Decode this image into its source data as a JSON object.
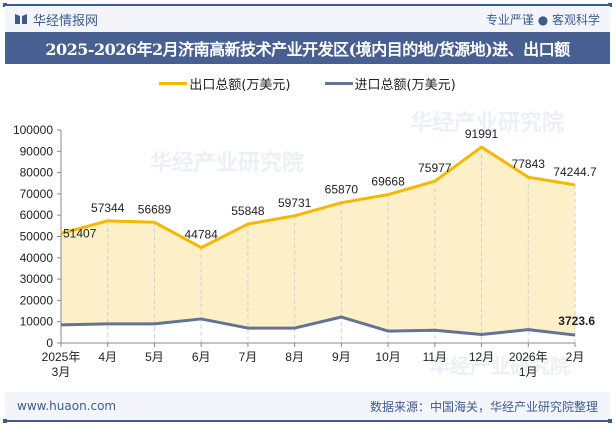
{
  "header": {
    "brand": "华经情报网",
    "slogan": "专业严谨 ● 客观科学"
  },
  "title": "2025-2026年2月济南高新技术产业开发区(境内目的地/货源地)进、出口额",
  "legend": {
    "export_label": "出口总额(万美元)",
    "import_label": "进口总额(万美元)"
  },
  "colors": {
    "export_line": "#f5b800",
    "export_fill": "#fdefc8",
    "import_line": "#637396",
    "brand_blue": "#475f91"
  },
  "footer": {
    "website": "www.huaon.com",
    "source": "数据来源：中国海关，华经产业研究院整理"
  },
  "watermark": {
    "cn": "华经产业研究院",
    "url": "www.huaon.com"
  },
  "chart_data": {
    "type": "area",
    "title": "2025-2026年2月济南高新技术产业开发区(境内目的地/货源地)进、出口额",
    "xlabel": "",
    "ylabel": "",
    "ylim": [
      0,
      100000
    ],
    "yticks": [
      0,
      10000,
      20000,
      30000,
      40000,
      50000,
      60000,
      70000,
      80000,
      90000,
      100000
    ],
    "categories": [
      "2025年3月",
      "4月",
      "5月",
      "6月",
      "7月",
      "8月",
      "9月",
      "10月",
      "11月",
      "12月",
      "2026年1月",
      "2月"
    ],
    "series": [
      {
        "name": "出口总额(万美元)",
        "values": [
          51407,
          57344,
          56689,
          44784,
          55848,
          59731,
          65870,
          69668,
          75977,
          91991,
          77843,
          74244.7
        ],
        "labels": [
          "51407",
          "57344",
          "56689",
          "44784",
          "55848",
          "59731",
          "65870",
          "69668",
          "75977",
          "91991",
          "77843",
          "74244.7"
        ]
      },
      {
        "name": "进口总额(万美元)",
        "values": [
          8500,
          9000,
          9000,
          11300,
          7000,
          7000,
          12200,
          5600,
          6000,
          4000,
          6300,
          3723.6
        ],
        "labels": [
          "",
          "",
          "",
          "",
          "",
          "",
          "",
          "",
          "",
          "",
          "",
          "3723.6"
        ]
      }
    ],
    "grid": "vertical dashed",
    "legend_position": "top"
  }
}
